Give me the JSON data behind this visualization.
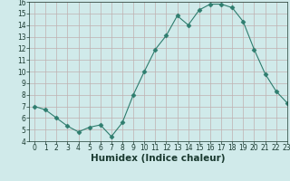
{
  "x": [
    0,
    1,
    2,
    3,
    4,
    5,
    6,
    7,
    8,
    9,
    10,
    11,
    12,
    13,
    14,
    15,
    16,
    17,
    18,
    19,
    20,
    21,
    22,
    23
  ],
  "y": [
    7.0,
    6.7,
    6.0,
    5.3,
    4.8,
    5.2,
    5.4,
    4.4,
    5.6,
    8.0,
    10.0,
    11.9,
    13.1,
    14.8,
    14.0,
    15.3,
    15.8,
    15.8,
    15.5,
    14.3,
    11.9,
    9.8,
    8.3,
    7.3
  ],
  "line_color": "#2e7d6e",
  "marker": "D",
  "marker_size": 2.5,
  "bg_color": "#d0eaea",
  "grid_color": "#c0b0b0",
  "xlabel": "Humidex (Indice chaleur)",
  "ylim": [
    4,
    16
  ],
  "xlim": [
    -0.5,
    23
  ],
  "yticks": [
    4,
    5,
    6,
    7,
    8,
    9,
    10,
    11,
    12,
    13,
    14,
    15,
    16
  ],
  "xticks": [
    0,
    1,
    2,
    3,
    4,
    5,
    6,
    7,
    8,
    9,
    10,
    11,
    12,
    13,
    14,
    15,
    16,
    17,
    18,
    19,
    20,
    21,
    22,
    23
  ],
  "tick_fontsize": 5.5,
  "xlabel_fontsize": 7.5,
  "label_color": "#1a3a30"
}
